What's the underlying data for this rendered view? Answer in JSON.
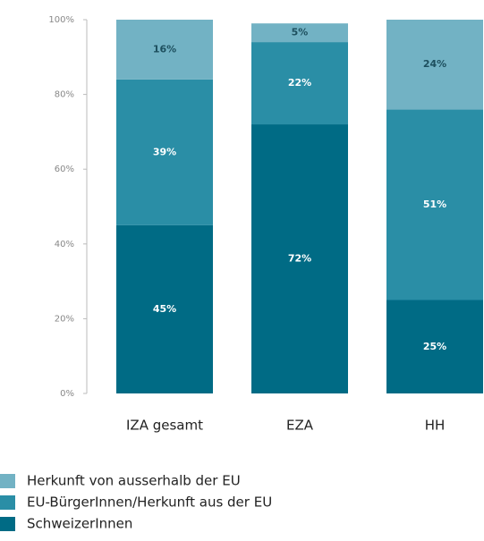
{
  "chart_data": {
    "type": "stacked_bar",
    "categories": [
      "IZA gesamt",
      "EZA",
      "HH"
    ],
    "series": [
      {
        "name": "SchweizerInnen",
        "color": "#006b85",
        "values": [
          45,
          72,
          25
        ],
        "value_labels": [
          "45%",
          "72%",
          "25%"
        ]
      },
      {
        "name": "EU-BürgerInnen/Herkunft aus der EU",
        "color": "#2a8ea6",
        "values": [
          39,
          22,
          51
        ],
        "value_labels": [
          "39%",
          "22%",
          "51%"
        ]
      },
      {
        "name": "Herkunft von ausserhalb der EU",
        "color": "#72b2c4",
        "values": [
          16,
          5,
          24
        ],
        "value_labels": [
          "16%",
          "5%",
          "24%"
        ]
      }
    ],
    "ylim": [
      0,
      100
    ],
    "yticks": [
      {
        "value": 0,
        "label": "0%"
      },
      {
        "value": 20,
        "label": "20%"
      },
      {
        "value": 40,
        "label": "40%"
      },
      {
        "value": 60,
        "label": "60%"
      },
      {
        "value": 80,
        "label": "80%"
      },
      {
        "value": 100,
        "label": "100%"
      }
    ],
    "legend": "bottom"
  }
}
